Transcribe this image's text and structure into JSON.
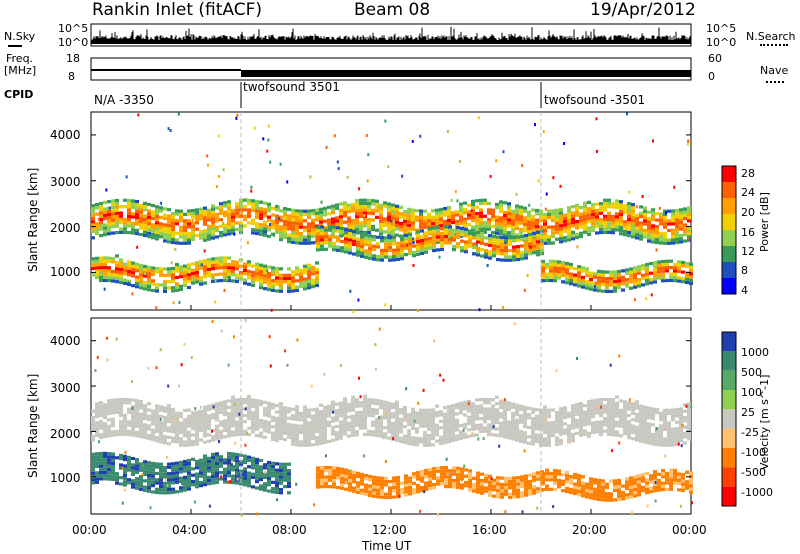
{
  "header": {
    "station": "Rankin Inlet (fitACF)",
    "beam": "Beam 08",
    "date": "19/Apr/2012"
  },
  "noise_panel": {
    "left_label": "N.Sky",
    "right_label": "N.Search",
    "left_ticks": [
      "10^5",
      "10^0"
    ],
    "right_ticks": [
      "10^5",
      "10^0"
    ]
  },
  "freq_panel": {
    "left_label_1": "Freq.",
    "left_label_2": "[MHz]",
    "left_ticks": [
      "18",
      "8"
    ],
    "right_label": "Nave",
    "right_ticks": [
      "60",
      "0"
    ]
  },
  "cpid_panel": {
    "label": "CPID",
    "segments": [
      {
        "start_hour": 0,
        "text": "N/A -3350"
      },
      {
        "start_hour": 6,
        "text": "twofsound 3501"
      },
      {
        "start_hour": 18,
        "text": "twofsound -3501"
      }
    ]
  },
  "chart_data": [
    {
      "type": "heatmap",
      "name": "power",
      "ylabel": "Slant Range [km]",
      "ylim": [
        180,
        4500
      ],
      "yticks": [
        "1000",
        "2000",
        "3000",
        "4000"
      ],
      "colorbar_label": "Power [dB]",
      "colorbar_ticks": [
        "28",
        "24",
        "20",
        "16",
        "12",
        "8",
        "4"
      ],
      "colorbar_colors": [
        "#ff0000",
        "#ff6000",
        "#ffa000",
        "#f0d000",
        "#90d050",
        "#3a9a5a",
        "#2050c0",
        "#0000ff"
      ]
    },
    {
      "type": "heatmap",
      "name": "velocity",
      "ylabel": "Slant Range [km]",
      "ylim": [
        180,
        4500
      ],
      "yticks": [
        "1000",
        "2000",
        "3000",
        "4000"
      ],
      "colorbar_label": "Velocity [m s^-1]",
      "colorbar_ticks": [
        "1000",
        "500",
        "100",
        "25",
        "-25",
        "-100",
        "-500",
        "-1000"
      ],
      "colorbar_colors": [
        "#2040b0",
        "#3a8a70",
        "#5aa868",
        "#90d050",
        "#c8c8c0",
        "#ffc070",
        "#ff8000",
        "#ff4000",
        "#ff0000"
      ]
    }
  ],
  "time_axis": {
    "xlabel": "Time UT",
    "xlim_hours": [
      0,
      24
    ],
    "ticks": [
      "00:00",
      "04:00",
      "08:00",
      "12:00",
      "16:00",
      "20:00",
      "00:00"
    ],
    "mode_change_hours": [
      6,
      18
    ]
  }
}
